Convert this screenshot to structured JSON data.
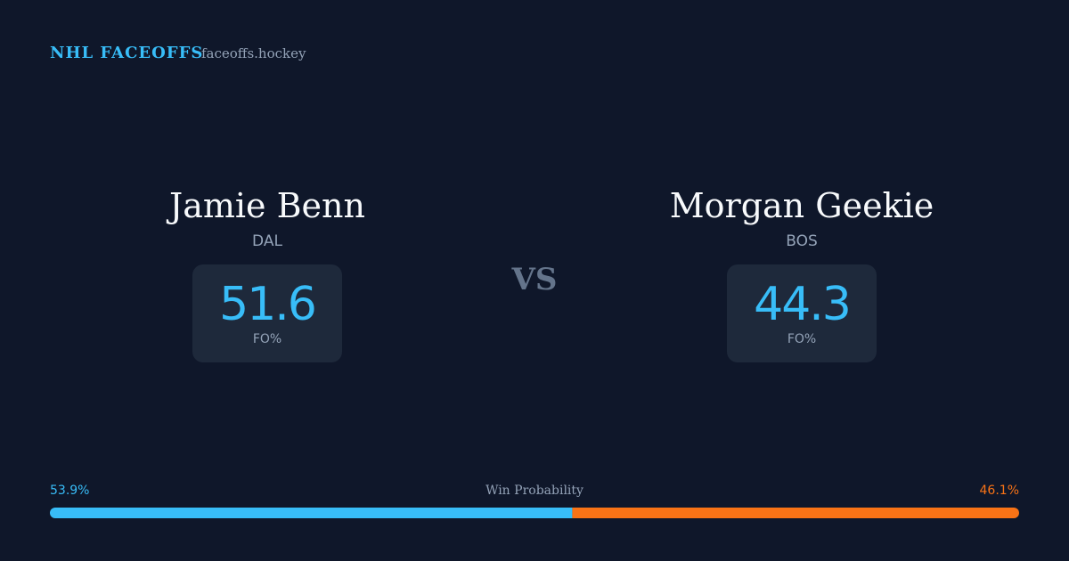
{
  "header": {
    "brand": "NHL FACEOFFS",
    "site": "faceoffs.hockey"
  },
  "players": [
    {
      "name": "Jamie Benn",
      "team": "DAL",
      "fo_value": 51.6,
      "fo_label": "FO%"
    },
    {
      "name": "Morgan Geekie",
      "team": "BOS",
      "fo_value": 44.3,
      "fo_label": "FO%"
    }
  ],
  "vs": "VS",
  "win_probability": {
    "label": "Win Probability",
    "values": [
      53.9,
      46.1
    ],
    "value_labels": [
      "53.9%",
      "46.1%"
    ],
    "colors": [
      "#38bdf8",
      "#f97316"
    ]
  }
}
